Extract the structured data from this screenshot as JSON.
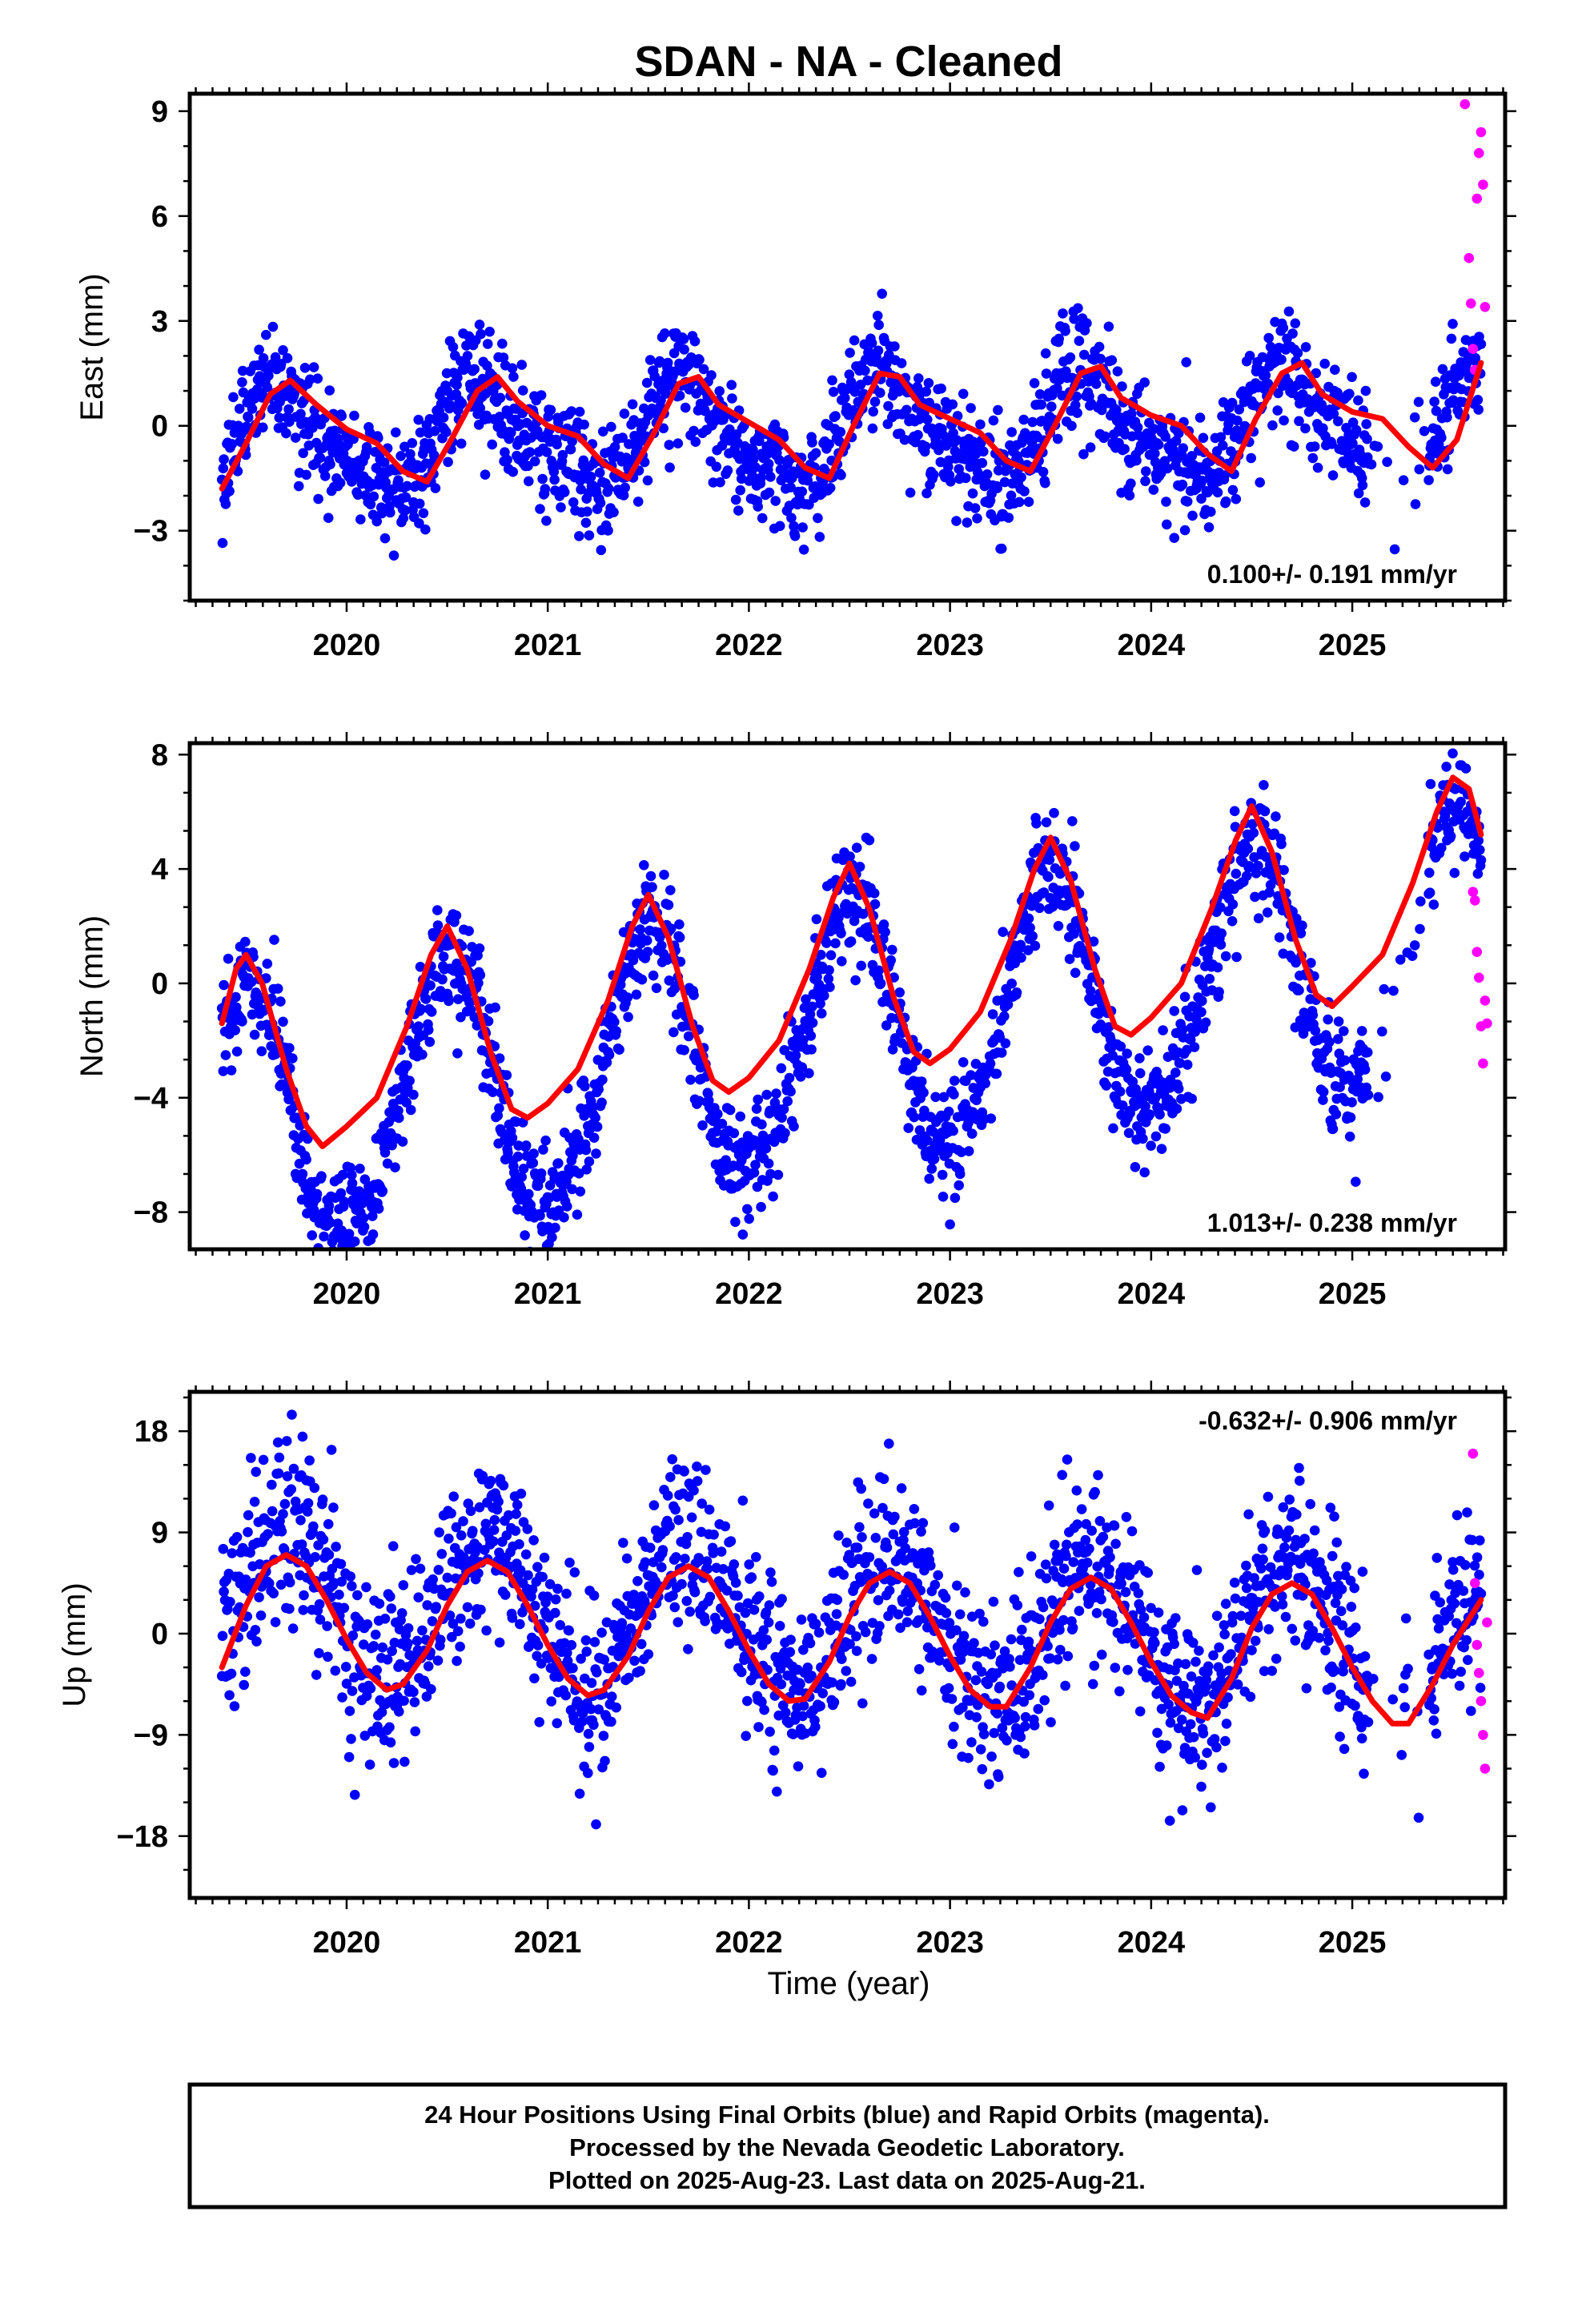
{
  "chart_data": {
    "type": "scatter",
    "title": "SDAN  - NA - Cleaned",
    "xlabel": "Time (year)",
    "xlim": [
      2019.22,
      2025.76
    ],
    "x_ticks": [
      2020,
      2021,
      2022,
      2023,
      2024,
      2025
    ],
    "x_tick_labels": [
      "2020",
      "2021",
      "2022",
      "2023",
      "2024",
      "2025"
    ],
    "grid": false,
    "legend": "none",
    "colors": {
      "final": "#0000ff",
      "rapid": "#ff00ff",
      "model": "#ff0000"
    },
    "footer_lines": [
      "24 Hour Positions Using Final Orbits (blue) and Rapid Orbits (magenta).",
      "Processed by the Nevada Geodetic Laboratory.",
      "Plotted on 2025-Aug-23. Last data on 2025-Aug-21."
    ],
    "panels": [
      {
        "ylabel": "East (mm)",
        "ylim": [
          -5,
          9.5
        ],
        "y_ticks": [
          -3,
          0,
          3,
          6,
          9
        ],
        "y_tick_labels": [
          "−3",
          "0",
          "3",
          "6",
          "9"
        ],
        "rate_text": "0.100+/- 0.191 mm/yr",
        "rate_position": "bottom-right",
        "model": {
          "rate": 0.1,
          "offset": -0.2,
          "annual_amp": 1.4,
          "annual_peak": 0.68,
          "semiannual_amp": 0.45,
          "semiannual_peak": 0.2,
          "noise_sd": 0.8
        },
        "model_curve": {
          "x": [
            2019.38,
            2019.5,
            2019.62,
            2019.72,
            2019.85,
            2020.0,
            2020.15,
            2020.28,
            2020.4,
            2020.52,
            2020.65,
            2020.75,
            2020.85,
            2021.0,
            2021.15,
            2021.28,
            2021.4,
            2021.52,
            2021.65,
            2021.75,
            2021.85,
            2022.0,
            2022.15,
            2022.28,
            2022.4,
            2022.52,
            2022.65,
            2022.75,
            2022.85,
            2023.0,
            2023.15,
            2023.28,
            2023.4,
            2023.52,
            2023.65,
            2023.75,
            2023.85,
            2024.0,
            2024.15,
            2024.28,
            2024.4,
            2024.52,
            2024.65,
            2024.75,
            2024.85,
            2025.0,
            2025.15,
            2025.28,
            2025.4,
            2025.52,
            2025.64
          ],
          "y": [
            -1.8,
            -0.5,
            0.9,
            1.3,
            0.6,
            -0.1,
            -0.5,
            -1.3,
            -1.6,
            -0.4,
            1.0,
            1.4,
            0.7,
            0.0,
            -0.3,
            -1.1,
            -1.5,
            -0.3,
            1.2,
            1.4,
            0.6,
            0.1,
            -0.4,
            -1.2,
            -1.5,
            0.0,
            1.5,
            1.4,
            0.6,
            0.2,
            -0.2,
            -1.0,
            -1.3,
            0.0,
            1.5,
            1.7,
            0.8,
            0.3,
            0.0,
            -0.8,
            -1.3,
            0.2,
            1.5,
            1.8,
            0.9,
            0.4,
            0.2,
            -0.6,
            -1.2,
            -0.4,
            1.8
          ]
        },
        "rapid_points": {
          "x": [
            2025.56,
            2025.58,
            2025.59,
            2025.6,
            2025.61,
            2025.62,
            2025.63,
            2025.64,
            2025.65,
            2025.66
          ],
          "y": [
            9.2,
            4.8,
            3.5,
            2.2,
            1.6,
            6.5,
            7.8,
            8.4,
            6.9,
            3.4
          ]
        }
      },
      {
        "ylabel": "North (mm)",
        "ylim": [
          -9.3,
          8.4
        ],
        "y_ticks": [
          -8,
          -4,
          0,
          4,
          8
        ],
        "y_tick_labels": [
          "−8",
          "−4",
          "0",
          "4",
          "8"
        ],
        "rate_text": "1.013+/- 0.238 mm/yr",
        "rate_position": "bottom-right",
        "model": {
          "rate": 1.013,
          "offset": -1.8,
          "annual_amp": 4.5,
          "annual_peak": 0.5,
          "semiannual_amp": 0.4,
          "semiannual_peak": 0.1,
          "noise_sd": 1.0
        },
        "model_curve": {
          "x": [
            2019.38,
            2019.45,
            2019.5,
            2019.58,
            2019.7,
            2019.8,
            2019.88,
            2020.0,
            2020.15,
            2020.3,
            2020.42,
            2020.5,
            2020.6,
            2020.72,
            2020.82,
            2020.9,
            2021.0,
            2021.15,
            2021.3,
            2021.42,
            2021.5,
            2021.6,
            2021.72,
            2021.82,
            2021.9,
            2022.0,
            2022.15,
            2022.3,
            2022.42,
            2022.5,
            2022.6,
            2022.72,
            2022.82,
            2022.9,
            2023.0,
            2023.15,
            2023.3,
            2023.42,
            2023.5,
            2023.6,
            2023.72,
            2023.82,
            2023.9,
            2024.0,
            2024.15,
            2024.3,
            2024.42,
            2024.5,
            2024.6,
            2024.72,
            2024.82,
            2024.9,
            2025.0,
            2025.15,
            2025.3,
            2025.42,
            2025.5,
            2025.58,
            2025.64
          ],
          "y": [
            -1.4,
            0.5,
            1.0,
            0.0,
            -3.0,
            -5.0,
            -5.7,
            -5.0,
            -4.0,
            -1.5,
            1.0,
            2.0,
            0.5,
            -2.5,
            -4.4,
            -4.7,
            -4.2,
            -3.0,
            -0.6,
            2.0,
            3.1,
            1.6,
            -1.5,
            -3.4,
            -3.8,
            -3.3,
            -2.0,
            0.5,
            3.0,
            4.2,
            2.6,
            -0.5,
            -2.4,
            -2.8,
            -2.3,
            -1.0,
            1.5,
            4.0,
            5.1,
            3.6,
            0.5,
            -1.5,
            -1.8,
            -1.2,
            0.0,
            2.6,
            5.0,
            6.2,
            4.6,
            1.5,
            -0.4,
            -0.8,
            -0.1,
            1.0,
            3.5,
            6.0,
            7.2,
            6.8,
            5.2
          ]
        },
        "rapid_points": {
          "x": [
            2025.6,
            2025.61,
            2025.62,
            2025.63,
            2025.64,
            2025.65,
            2025.66,
            2025.67
          ],
          "y": [
            3.2,
            2.9,
            1.1,
            0.2,
            -1.5,
            -2.8,
            -0.6,
            -1.4
          ]
        }
      },
      {
        "ylabel": "Up (mm)",
        "ylim": [
          -23.5,
          21.5
        ],
        "y_ticks": [
          -18,
          -9,
          0,
          9,
          18
        ],
        "y_tick_labels": [
          "−18",
          "−9",
          "0",
          "9",
          "18"
        ],
        "rate_text": "-0.632+/- 0.906 mm/yr",
        "rate_position": "top-right",
        "model": {
          "rate": -0.632,
          "offset": 1.0,
          "annual_amp": 6.0,
          "annual_peak": 0.7,
          "semiannual_amp": 0.0,
          "semiannual_peak": 0.0,
          "noise_sd": 4.0
        },
        "model_curve": {
          "x": [
            2019.38,
            2019.5,
            2019.6,
            2019.7,
            2019.8,
            2019.9,
            2020.0,
            2020.1,
            2020.2,
            2020.28,
            2020.4,
            2020.5,
            2020.6,
            2020.7,
            2020.8,
            2020.9,
            2021.0,
            2021.1,
            2021.2,
            2021.28,
            2021.4,
            2021.5,
            2021.6,
            2021.7,
            2021.8,
            2021.9,
            2022.0,
            2022.1,
            2022.2,
            2022.28,
            2022.4,
            2022.5,
            2022.6,
            2022.7,
            2022.8,
            2022.9,
            2023.0,
            2023.1,
            2023.2,
            2023.28,
            2023.4,
            2023.5,
            2023.6,
            2023.7,
            2023.8,
            2023.9,
            2024.0,
            2024.1,
            2024.2,
            2024.28,
            2024.4,
            2024.5,
            2024.6,
            2024.7,
            2024.8,
            2024.9,
            2025.0,
            2025.1,
            2025.2,
            2025.28,
            2025.4,
            2025.5,
            2025.64
          ],
          "y": [
            -3.0,
            2.5,
            6.0,
            7.0,
            6.0,
            3.0,
            -0.5,
            -3.5,
            -5.0,
            -4.5,
            -1.5,
            2.5,
            5.5,
            6.5,
            5.5,
            2.5,
            -1.0,
            -4.0,
            -5.5,
            -5.0,
            -2.0,
            2.0,
            5.0,
            6.0,
            5.0,
            2.0,
            -1.5,
            -4.5,
            -6.0,
            -5.8,
            -2.5,
            1.5,
            4.5,
            5.5,
            4.5,
            1.5,
            -2.0,
            -5.0,
            -6.5,
            -6.5,
            -3.0,
            1.0,
            4.0,
            5.0,
            4.0,
            1.0,
            -2.5,
            -5.5,
            -7.0,
            -7.5,
            -4.0,
            0.5,
            3.5,
            4.5,
            3.5,
            0.5,
            -3.0,
            -6.0,
            -8.0,
            -8.0,
            -4.5,
            -1.0,
            3.0
          ]
        },
        "rapid_points": {
          "x": [
            2025.6,
            2025.61,
            2025.62,
            2025.63,
            2025.64,
            2025.65,
            2025.66,
            2025.67
          ],
          "y": [
            16.0,
            4.5,
            -1.0,
            -3.5,
            -6.0,
            -9.0,
            -12.0,
            1.0
          ]
        }
      }
    ]
  }
}
